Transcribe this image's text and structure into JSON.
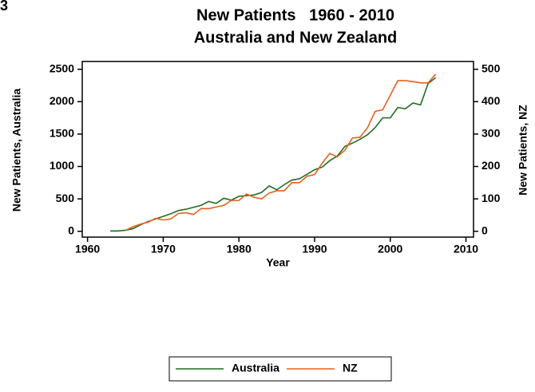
{
  "figure_label": "3",
  "chart_data": {
    "type": "line",
    "title": [
      "New Patients   1960 - 2010",
      "Australia and New Zealand"
    ],
    "x_label": "Year",
    "y_label": "New Patients, Australia",
    "y2_label": "New Patients, NZ",
    "xlim": [
      1959.3,
      2011
    ],
    "xticks": [
      1960,
      1970,
      1980,
      1990,
      2000,
      2010
    ],
    "ylim": [
      -90,
      2620
    ],
    "yticks": [
      0,
      500,
      1000,
      1500,
      2000,
      2500
    ],
    "y2lim": [
      -18,
      524
    ],
    "y2ticks": [
      0,
      100,
      200,
      300,
      400,
      500
    ],
    "legend": "bottom",
    "series": [
      {
        "name": "Australia",
        "color": "#1f6e1f",
        "axis": "y",
        "x": [
          1963,
          1964,
          1965,
          1966,
          1967,
          1968,
          1969,
          1970,
          1971,
          1972,
          1973,
          1974,
          1975,
          1976,
          1977,
          1978,
          1979,
          1980,
          1981,
          1982,
          1983,
          1984,
          1985,
          1986,
          1987,
          1988,
          1989,
          1990,
          1991,
          1992,
          1993,
          1994,
          1995,
          1996,
          1997,
          1998,
          1999,
          2000,
          2001,
          2002,
          2003,
          2004,
          2005,
          2006
        ],
        "values": [
          5,
          5,
          15,
          40,
          100,
          150,
          190,
          230,
          270,
          320,
          340,
          370,
          400,
          460,
          430,
          510,
          480,
          540,
          550,
          560,
          600,
          700,
          640,
          720,
          790,
          810,
          880,
          950,
          990,
          1090,
          1160,
          1310,
          1360,
          1420,
          1490,
          1600,
          1750,
          1750,
          1910,
          1890,
          1980,
          1950,
          2280,
          2370
        ]
      },
      {
        "name": "NZ",
        "color": "#e8601c",
        "axis": "y2",
        "x": [
          1965,
          1966,
          1967,
          1968,
          1969,
          1970,
          1971,
          1972,
          1973,
          1974,
          1975,
          1976,
          1977,
          1978,
          1979,
          1980,
          1981,
          1982,
          1983,
          1984,
          1985,
          1986,
          1987,
          1988,
          1989,
          1990,
          1991,
          1992,
          1993,
          1994,
          1995,
          1996,
          1997,
          1998,
          1999,
          2000,
          2001,
          2002,
          2003,
          2004,
          2005,
          2006
        ],
        "values": [
          3,
          14,
          22,
          28,
          40,
          35,
          38,
          55,
          57,
          52,
          70,
          70,
          75,
          80,
          95,
          95,
          115,
          105,
          100,
          118,
          125,
          125,
          150,
          150,
          170,
          175,
          210,
          240,
          230,
          250,
          288,
          290,
          320,
          370,
          375,
          420,
          465,
          465,
          462,
          458,
          458,
          485
        ]
      }
    ]
  }
}
